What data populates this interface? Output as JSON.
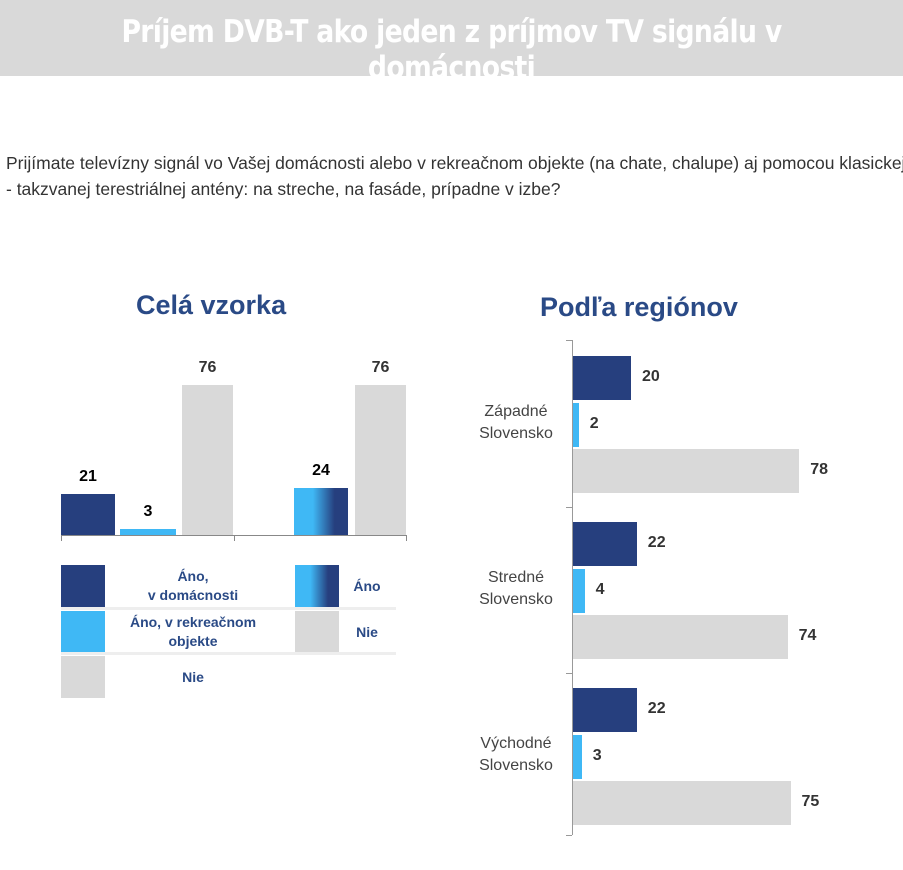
{
  "title": "Príjem DVB-T ako jeden z príjmov TV signálu v domácnosti",
  "question": "Prijímate televízny signál vo Vašej domácnosti alebo v rekreačnom objekte (na chate, chalupe) aj pomocou klasickej - takzvanej terestriálnej antény: na streche, na fasáde, prípadne v izbe?",
  "colors": {
    "dark": "#263f7e",
    "light": "#3fb8f5",
    "gray": "#d9d9d9",
    "title": "#2a4a86"
  },
  "chart_data": [
    {
      "type": "bar",
      "title": "Celá vzorka",
      "groups": [
        {
          "series": [
            {
              "name": "Áno, v domácnosti",
              "value": 21,
              "color": "dark"
            },
            {
              "name": "Áno, v rekreačnom objekte",
              "value": 3,
              "color": "light"
            },
            {
              "name": "Nie",
              "value": 76,
              "color": "gray"
            }
          ]
        },
        {
          "series": [
            {
              "name": "Áno",
              "value": 24,
              "color": "gradient"
            },
            {
              "name": "Nie",
              "value": 76,
              "color": "gray"
            }
          ]
        }
      ],
      "legend": [
        {
          "label": [
            "Áno,",
            "v domácnosti"
          ],
          "color": "dark"
        },
        {
          "label": [
            "Áno, v rekreačnom",
            "objekte"
          ],
          "color": "light"
        },
        {
          "label": [
            "Nie"
          ],
          "color": "gray"
        },
        {
          "label": [
            "Áno"
          ],
          "color": "gradient"
        },
        {
          "label": [
            "Nie"
          ],
          "color": "gray"
        }
      ],
      "legend_placement": "bottom"
    },
    {
      "type": "bar",
      "orientation": "horizontal",
      "title": "Podľa regiónov",
      "categories": [
        [
          "Západné",
          "Slovensko"
        ],
        [
          "Stredné",
          "Slovensko"
        ],
        [
          "Východné",
          "Slovensko"
        ]
      ],
      "series": [
        {
          "name": "Áno, v domácnosti",
          "values": [
            20,
            22,
            22
          ],
          "color": "dark"
        },
        {
          "name": "Áno, v rekreačnom objekte",
          "values": [
            2,
            4,
            3
          ],
          "color": "light"
        },
        {
          "name": "Nie",
          "values": [
            78,
            74,
            75
          ],
          "color": "gray"
        }
      ]
    }
  ]
}
